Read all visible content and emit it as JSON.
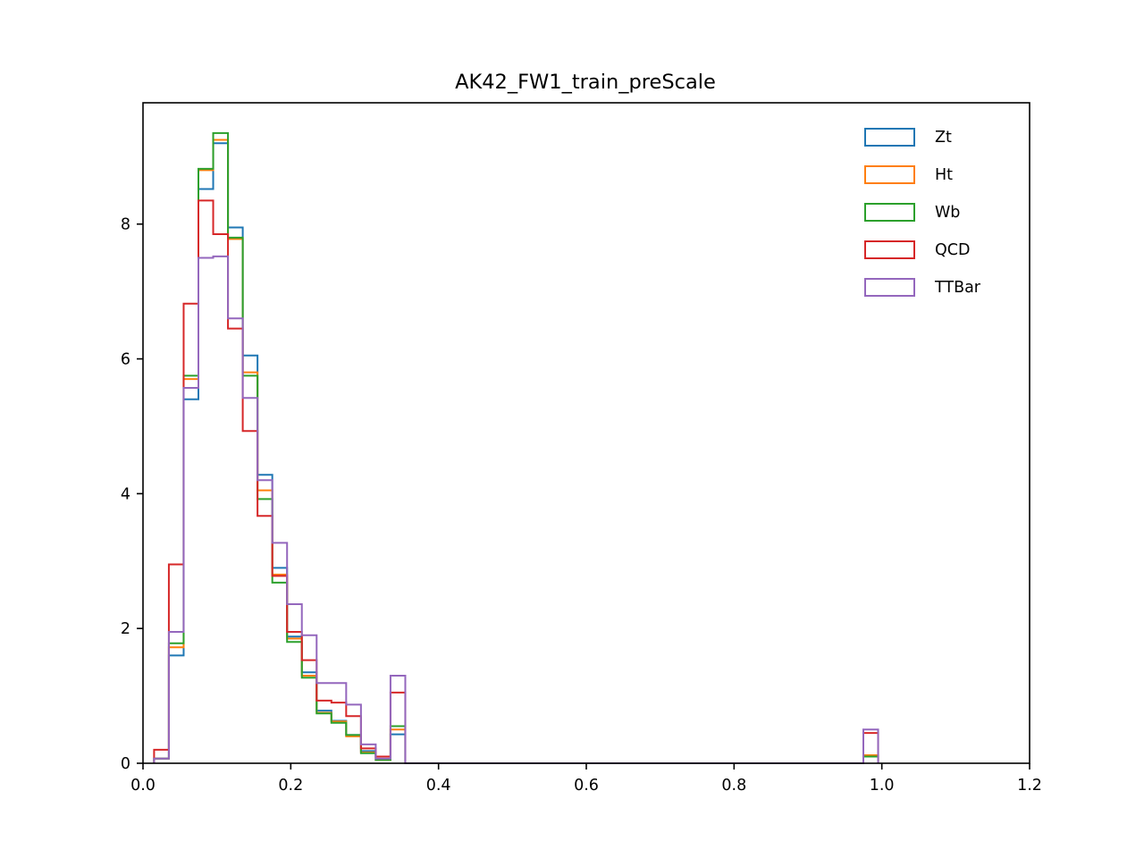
{
  "chart_data": {
    "type": "histogram",
    "title": "AK42_FW1_train_preScale",
    "xlabel": "",
    "ylabel": "",
    "xlim": [
      0.0,
      1.2
    ],
    "ylim": [
      0,
      9.8
    ],
    "x_ticks": [
      "0.0",
      "0.2",
      "0.4",
      "0.6",
      "0.8",
      "1.0",
      "1.2"
    ],
    "y_ticks": [
      "0",
      "2",
      "4",
      "6",
      "8"
    ],
    "x_tick_values": [
      0.0,
      0.2,
      0.4,
      0.6,
      0.8,
      1.0,
      1.2
    ],
    "y_tick_values": [
      0,
      2,
      4,
      6,
      8
    ],
    "grid": false,
    "legend_position": "top-right",
    "histtype": "step",
    "series": [
      {
        "name": "Zt",
        "color": "#1f77b4",
        "bins": [
          {
            "x0": 0.015,
            "x1": 0.035,
            "y": 0.07
          },
          {
            "x0": 0.035,
            "x1": 0.055,
            "y": 1.6
          },
          {
            "x0": 0.055,
            "x1": 0.075,
            "y": 5.4
          },
          {
            "x0": 0.075,
            "x1": 0.095,
            "y": 8.52
          },
          {
            "x0": 0.095,
            "x1": 0.115,
            "y": 9.2
          },
          {
            "x0": 0.115,
            "x1": 0.135,
            "y": 7.95
          },
          {
            "x0": 0.135,
            "x1": 0.155,
            "y": 6.05
          },
          {
            "x0": 0.155,
            "x1": 0.175,
            "y": 4.28
          },
          {
            "x0": 0.175,
            "x1": 0.195,
            "y": 2.9
          },
          {
            "x0": 0.195,
            "x1": 0.215,
            "y": 1.88
          },
          {
            "x0": 0.215,
            "x1": 0.235,
            "y": 1.35
          },
          {
            "x0": 0.235,
            "x1": 0.255,
            "y": 0.78
          },
          {
            "x0": 0.255,
            "x1": 0.275,
            "y": 0.63
          },
          {
            "x0": 0.275,
            "x1": 0.295,
            "y": 0.42
          },
          {
            "x0": 0.295,
            "x1": 0.315,
            "y": 0.18
          },
          {
            "x0": 0.315,
            "x1": 0.335,
            "y": 0.05
          },
          {
            "x0": 0.335,
            "x1": 0.355,
            "y": 0.43
          },
          {
            "x0": 0.355,
            "x1": 0.975,
            "y": 0
          },
          {
            "x0": 0.975,
            "x1": 0.995,
            "y": 0.12
          }
        ]
      },
      {
        "name": "Ht",
        "color": "#ff7f0e",
        "bins": [
          {
            "x0": 0.015,
            "x1": 0.035,
            "y": 0.07
          },
          {
            "x0": 0.035,
            "x1": 0.055,
            "y": 1.72
          },
          {
            "x0": 0.055,
            "x1": 0.075,
            "y": 5.7
          },
          {
            "x0": 0.075,
            "x1": 0.095,
            "y": 8.8
          },
          {
            "x0": 0.095,
            "x1": 0.115,
            "y": 9.25
          },
          {
            "x0": 0.115,
            "x1": 0.135,
            "y": 7.78
          },
          {
            "x0": 0.135,
            "x1": 0.155,
            "y": 5.8
          },
          {
            "x0": 0.155,
            "x1": 0.175,
            "y": 4.05
          },
          {
            "x0": 0.175,
            "x1": 0.195,
            "y": 2.8
          },
          {
            "x0": 0.195,
            "x1": 0.215,
            "y": 1.85
          },
          {
            "x0": 0.215,
            "x1": 0.235,
            "y": 1.3
          },
          {
            "x0": 0.235,
            "x1": 0.255,
            "y": 0.75
          },
          {
            "x0": 0.255,
            "x1": 0.275,
            "y": 0.62
          },
          {
            "x0": 0.275,
            "x1": 0.295,
            "y": 0.4
          },
          {
            "x0": 0.295,
            "x1": 0.315,
            "y": 0.16
          },
          {
            "x0": 0.315,
            "x1": 0.335,
            "y": 0.05
          },
          {
            "x0": 0.335,
            "x1": 0.355,
            "y": 0.5
          },
          {
            "x0": 0.355,
            "x1": 0.975,
            "y": 0
          },
          {
            "x0": 0.975,
            "x1": 0.995,
            "y": 0.12
          }
        ]
      },
      {
        "name": "Wb",
        "color": "#2ca02c",
        "bins": [
          {
            "x0": 0.015,
            "x1": 0.035,
            "y": 0.07
          },
          {
            "x0": 0.035,
            "x1": 0.055,
            "y": 1.78
          },
          {
            "x0": 0.055,
            "x1": 0.075,
            "y": 5.75
          },
          {
            "x0": 0.075,
            "x1": 0.095,
            "y": 8.82
          },
          {
            "x0": 0.095,
            "x1": 0.115,
            "y": 9.35
          },
          {
            "x0": 0.115,
            "x1": 0.135,
            "y": 7.8
          },
          {
            "x0": 0.135,
            "x1": 0.155,
            "y": 5.75
          },
          {
            "x0": 0.155,
            "x1": 0.175,
            "y": 3.92
          },
          {
            "x0": 0.175,
            "x1": 0.195,
            "y": 2.68
          },
          {
            "x0": 0.195,
            "x1": 0.215,
            "y": 1.8
          },
          {
            "x0": 0.215,
            "x1": 0.235,
            "y": 1.27
          },
          {
            "x0": 0.235,
            "x1": 0.255,
            "y": 0.74
          },
          {
            "x0": 0.255,
            "x1": 0.275,
            "y": 0.6
          },
          {
            "x0": 0.275,
            "x1": 0.295,
            "y": 0.42
          },
          {
            "x0": 0.295,
            "x1": 0.315,
            "y": 0.15
          },
          {
            "x0": 0.315,
            "x1": 0.335,
            "y": 0.05
          },
          {
            "x0": 0.335,
            "x1": 0.355,
            "y": 0.55
          },
          {
            "x0": 0.355,
            "x1": 0.975,
            "y": 0
          },
          {
            "x0": 0.975,
            "x1": 0.995,
            "y": 0.1
          }
        ]
      },
      {
        "name": "QCD",
        "color": "#d62728",
        "bins": [
          {
            "x0": 0.015,
            "x1": 0.035,
            "y": 0.2
          },
          {
            "x0": 0.035,
            "x1": 0.055,
            "y": 2.95
          },
          {
            "x0": 0.055,
            "x1": 0.075,
            "y": 6.82
          },
          {
            "x0": 0.075,
            "x1": 0.095,
            "y": 8.35
          },
          {
            "x0": 0.095,
            "x1": 0.115,
            "y": 7.85
          },
          {
            "x0": 0.115,
            "x1": 0.135,
            "y": 6.45
          },
          {
            "x0": 0.135,
            "x1": 0.155,
            "y": 4.93
          },
          {
            "x0": 0.155,
            "x1": 0.175,
            "y": 3.67
          },
          {
            "x0": 0.175,
            "x1": 0.195,
            "y": 2.78
          },
          {
            "x0": 0.195,
            "x1": 0.215,
            "y": 1.95
          },
          {
            "x0": 0.215,
            "x1": 0.235,
            "y": 1.53
          },
          {
            "x0": 0.235,
            "x1": 0.255,
            "y": 0.93
          },
          {
            "x0": 0.255,
            "x1": 0.275,
            "y": 0.9
          },
          {
            "x0": 0.275,
            "x1": 0.295,
            "y": 0.7
          },
          {
            "x0": 0.295,
            "x1": 0.315,
            "y": 0.22
          },
          {
            "x0": 0.315,
            "x1": 0.335,
            "y": 0.1
          },
          {
            "x0": 0.335,
            "x1": 0.355,
            "y": 1.05
          },
          {
            "x0": 0.355,
            "x1": 0.975,
            "y": 0
          },
          {
            "x0": 0.975,
            "x1": 0.995,
            "y": 0.45
          }
        ]
      },
      {
        "name": "TTBar",
        "color": "#9467bd",
        "bins": [
          {
            "x0": 0.015,
            "x1": 0.035,
            "y": 0.07
          },
          {
            "x0": 0.035,
            "x1": 0.055,
            "y": 1.95
          },
          {
            "x0": 0.055,
            "x1": 0.075,
            "y": 5.57
          },
          {
            "x0": 0.075,
            "x1": 0.095,
            "y": 7.5
          },
          {
            "x0": 0.095,
            "x1": 0.115,
            "y": 7.52
          },
          {
            "x0": 0.115,
            "x1": 0.135,
            "y": 6.6
          },
          {
            "x0": 0.135,
            "x1": 0.155,
            "y": 5.42
          },
          {
            "x0": 0.155,
            "x1": 0.175,
            "y": 4.2
          },
          {
            "x0": 0.175,
            "x1": 0.195,
            "y": 3.27
          },
          {
            "x0": 0.195,
            "x1": 0.215,
            "y": 2.36
          },
          {
            "x0": 0.215,
            "x1": 0.235,
            "y": 1.9
          },
          {
            "x0": 0.235,
            "x1": 0.255,
            "y": 1.19
          },
          {
            "x0": 0.255,
            "x1": 0.275,
            "y": 1.19
          },
          {
            "x0": 0.275,
            "x1": 0.295,
            "y": 0.87
          },
          {
            "x0": 0.295,
            "x1": 0.315,
            "y": 0.28
          },
          {
            "x0": 0.315,
            "x1": 0.335,
            "y": 0.07
          },
          {
            "x0": 0.335,
            "x1": 0.355,
            "y": 1.3
          },
          {
            "x0": 0.355,
            "x1": 0.975,
            "y": 0
          },
          {
            "x0": 0.975,
            "x1": 0.995,
            "y": 0.5
          }
        ]
      }
    ]
  }
}
